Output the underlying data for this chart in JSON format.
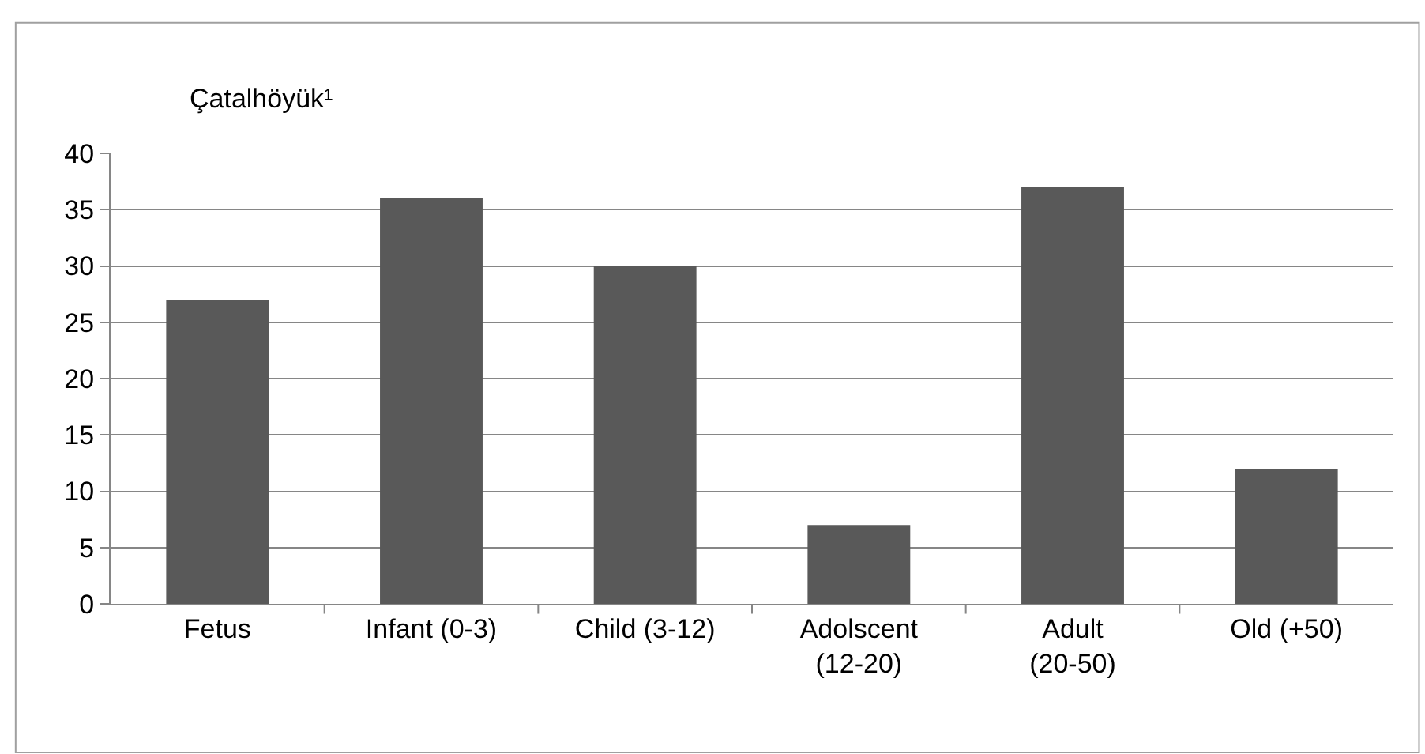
{
  "chart_data": {
    "type": "bar",
    "title": "Çatalhöyük¹",
    "categories": [
      "Fetus",
      "Infant (0-3)",
      "Child (3-12)",
      "Adolscent (12-20)",
      "Adult (20-50)",
      "Old (+50)"
    ],
    "values": [
      27,
      36,
      30,
      7,
      37,
      12
    ],
    "color": "#595959",
    "ylim": [
      0,
      40
    ],
    "yticks": [
      0,
      5,
      10,
      15,
      20,
      25,
      30,
      35,
      40
    ],
    "grid": "y"
  }
}
